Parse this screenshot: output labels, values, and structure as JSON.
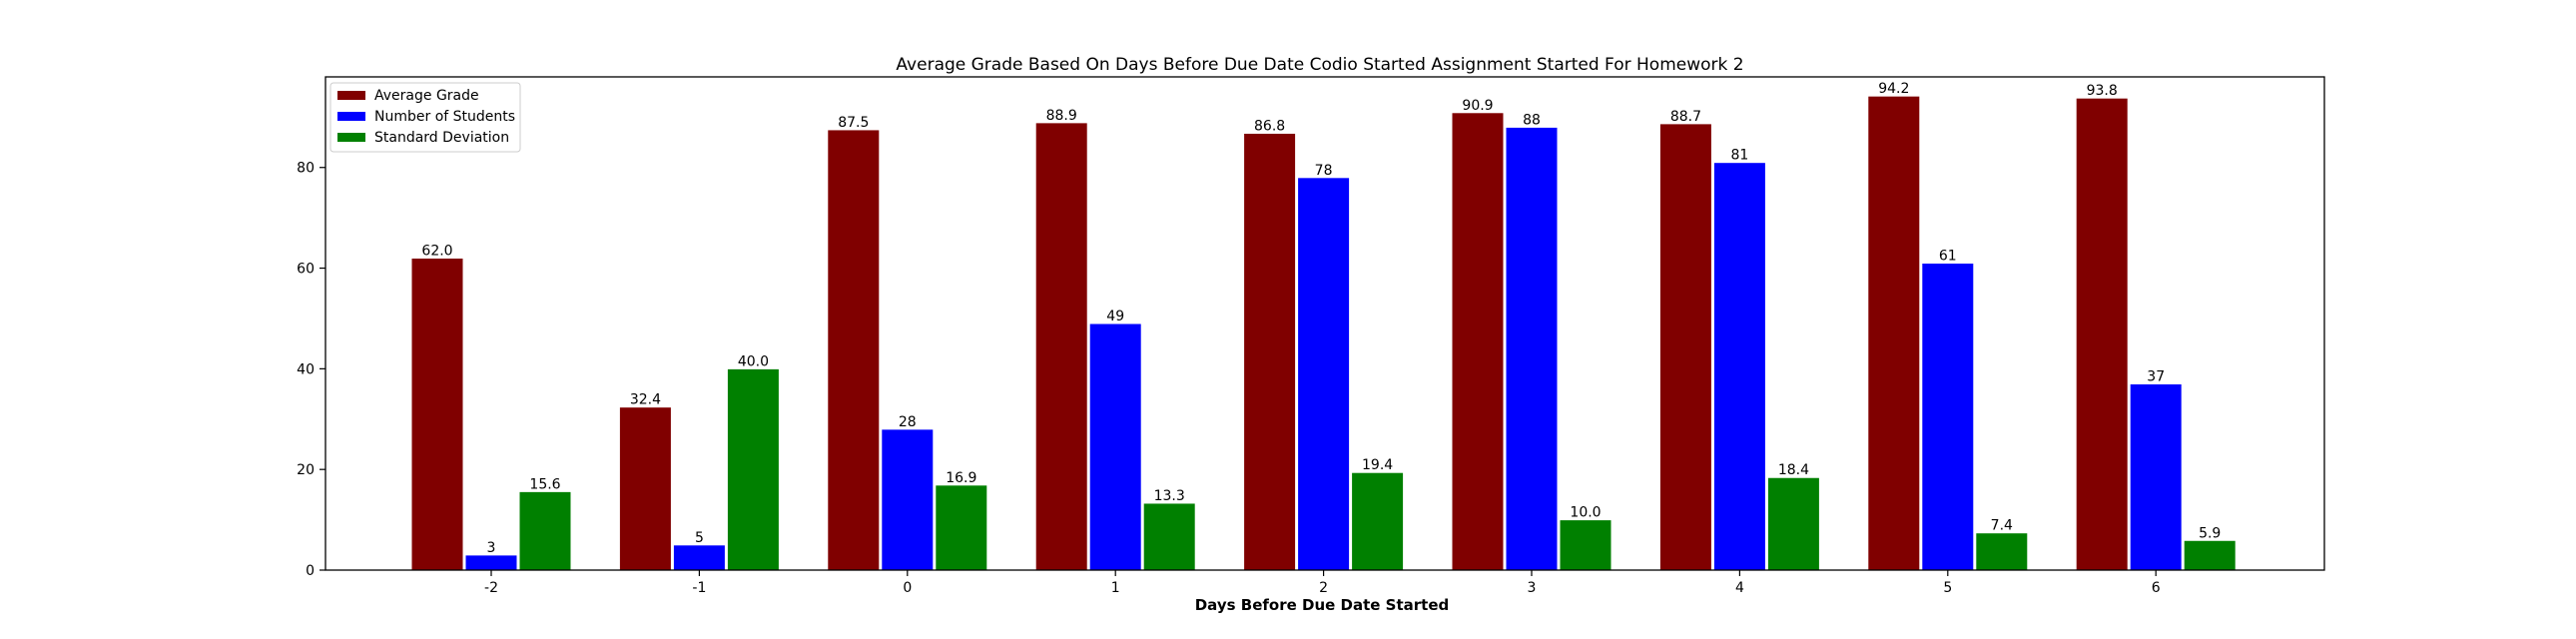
{
  "chart_data": {
    "type": "bar",
    "title": "Average Grade Based On Days Before Due Date Codio Started Assignment Started For Homework 2",
    "xlabel": "Days Before Due Date Started",
    "ylabel": "",
    "categories": [
      "-2",
      "-1",
      "0",
      "1",
      "2",
      "3",
      "4",
      "5",
      "6"
    ],
    "ylim": [
      0,
      98
    ],
    "yticks": [
      0,
      20,
      40,
      60,
      80
    ],
    "grid": false,
    "legend_position": "top-left",
    "series": [
      {
        "name": "Average Grade",
        "color": "#800000",
        "values": [
          62.0,
          32.4,
          87.5,
          88.9,
          86.8,
          90.9,
          88.7,
          94.2,
          93.8
        ],
        "labels": [
          "62.0",
          "32.4",
          "87.5",
          "88.9",
          "86.8",
          "90.9",
          "88.7",
          "94.2",
          "93.8"
        ]
      },
      {
        "name": "Number of Students",
        "color": "#0000ff",
        "values": [
          3,
          5,
          28,
          49,
          78,
          88,
          81,
          61,
          37
        ],
        "labels": [
          "3",
          "5",
          "28",
          "49",
          "78",
          "88",
          "81",
          "61",
          "37"
        ]
      },
      {
        "name": "Standard Deviation",
        "color": "#008000",
        "values": [
          15.6,
          40.0,
          16.9,
          13.3,
          19.4,
          10.0,
          18.4,
          7.4,
          5.9
        ],
        "labels": [
          "15.6",
          "40.0",
          "16.9",
          "13.3",
          "19.4",
          "10.0",
          "18.4",
          "7.4",
          "5.9"
        ]
      }
    ]
  }
}
